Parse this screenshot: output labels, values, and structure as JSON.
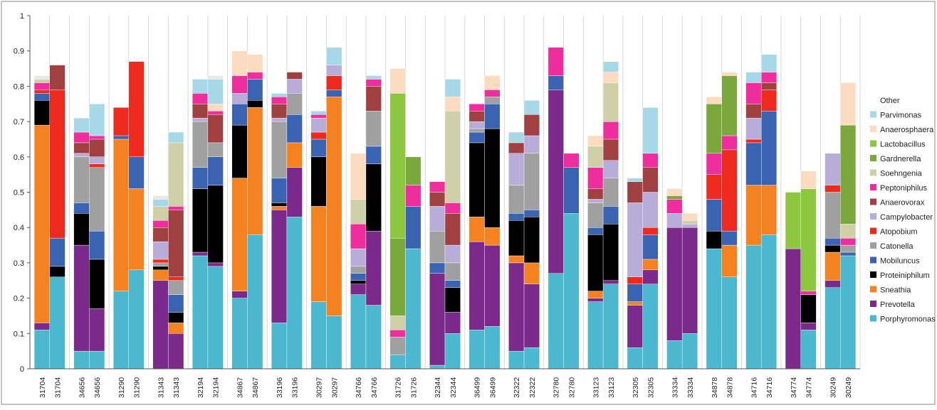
{
  "chart_data": {
    "type": "bar",
    "stacked": true,
    "title": "",
    "xlabel": "",
    "ylabel": "",
    "ylim": [
      0,
      1
    ],
    "yticks": [
      "0",
      "0.1",
      "0.2",
      "0.3",
      "0.4",
      "0.5",
      "0.6",
      "0.7",
      "0.8",
      "0.9",
      "1"
    ],
    "grid": false,
    "legend_position": "right",
    "categories": [
      "31704",
      "31704",
      "34656",
      "34656",
      "31290",
      "31290",
      "31343",
      "31343",
      "32194",
      "32194",
      "34867",
      "34867",
      "33196",
      "33196",
      "30297",
      "30297",
      "34766",
      "34766",
      "31726",
      "31726",
      "32344",
      "32344",
      "36499",
      "36499",
      "32322",
      "32322",
      "32780",
      "32780",
      "33123",
      "33123",
      "32305",
      "32305",
      "33334",
      "33334",
      "34878",
      "34878",
      "34716",
      "34716",
      "34774",
      "34774",
      "30249",
      "30249"
    ],
    "series": [
      {
        "name": "Porphyromonas",
        "color": "#4bb8d0",
        "values": [
          0.11,
          0.26,
          0.05,
          0.05,
          0.22,
          0.28,
          0,
          0,
          0.32,
          0.29,
          0.2,
          0.38,
          0.13,
          0.43,
          0.19,
          0.15,
          0.21,
          0.18,
          0.04,
          0.34,
          0.01,
          0.1,
          0.11,
          0.12,
          0.05,
          0.06,
          0.27,
          0.44,
          0.19,
          0.24,
          0.06,
          0.24,
          0.08,
          0.1,
          0.34,
          0.26,
          0.35,
          0.38,
          0,
          0.11,
          0.23,
          0.32
        ]
      },
      {
        "name": "Prevotella",
        "color": "#7b2a8c",
        "values": [
          0.02,
          0,
          0.3,
          0.12,
          0,
          0,
          0.25,
          0.1,
          0.01,
          0.01,
          0.02,
          0,
          0.32,
          0.14,
          0,
          0,
          0.03,
          0.21,
          0,
          0,
          0.26,
          0.06,
          0.25,
          0.23,
          0.25,
          0.18,
          0.52,
          0,
          0.01,
          0.01,
          0.12,
          0.04,
          0.32,
          0.3,
          0,
          0,
          0,
          0,
          0.34,
          0.02,
          0.02,
          0
        ]
      },
      {
        "name": "Sneathia",
        "color": "#f58220",
        "values": [
          0.56,
          0,
          0,
          0,
          0.43,
          0.23,
          0.03,
          0.03,
          0,
          0,
          0.32,
          0.36,
          0.01,
          0.07,
          0.27,
          0.62,
          0,
          0,
          0,
          0,
          0,
          0,
          0.07,
          0.05,
          0.02,
          0.06,
          0,
          0,
          0.02,
          0,
          0.01,
          0.03,
          0,
          0,
          0,
          0.09,
          0.17,
          0.14,
          0,
          0,
          0.08,
          0
        ]
      },
      {
        "name": "Proteiniphilum",
        "color": "#000000",
        "values": [
          0.07,
          0.03,
          0.09,
          0.14,
          0,
          0,
          0.01,
          0.03,
          0.18,
          0.22,
          0.15,
          0.02,
          0.01,
          0,
          0.14,
          0,
          0.01,
          0.19,
          0,
          0,
          0,
          0.07,
          0.21,
          0.28,
          0.1,
          0.13,
          0,
          0,
          0.16,
          0.16,
          0,
          0,
          0,
          0,
          0.05,
          0,
          0,
          0,
          0,
          0.08,
          0.02,
          0
        ]
      },
      {
        "name": "Mobiluncus",
        "color": "#3a64b2",
        "values": [
          0.02,
          0.08,
          0.03,
          0.08,
          0.01,
          0.09,
          0,
          0.05,
          0.06,
          0.08,
          0.06,
          0.06,
          0.07,
          0.08,
          0.05,
          0.02,
          0.02,
          0.05,
          0,
          0.12,
          0.03,
          0.02,
          0.03,
          0.07,
          0.02,
          0.02,
          0.04,
          0.13,
          0.02,
          0.05,
          0.05,
          0.07,
          0,
          0,
          0.09,
          0.04,
          0.12,
          0.21,
          0,
          0,
          0.02,
          0.01
        ]
      },
      {
        "name": "Catonella",
        "color": "#a0a0a0",
        "values": [
          0,
          0,
          0.13,
          0.18,
          0,
          0,
          0.01,
          0.04,
          0.13,
          0.04,
          0,
          0,
          0.16,
          0.06,
          0,
          0,
          0.02,
          0.1,
          0.05,
          0,
          0.09,
          0.05,
          0.01,
          0.02,
          0.08,
          0.16,
          0,
          0,
          0.07,
          0.08,
          0,
          0,
          0,
          0,
          0,
          0,
          0,
          0,
          0,
          0,
          0.13,
          0.02
        ]
      },
      {
        "name": "Atopobium",
        "color": "#ee2a1f",
        "values": [
          0.01,
          0.42,
          0,
          0.01,
          0.08,
          0.27,
          0.01,
          0.01,
          0,
          0,
          0,
          0,
          0,
          0,
          0.02,
          0.04,
          0,
          0,
          0,
          0,
          0,
          0,
          0,
          0,
          0,
          0,
          0,
          0,
          0,
          0,
          0.02,
          0.02,
          0,
          0,
          0.07,
          0.23,
          0.01,
          0.06,
          0,
          0,
          0.02,
          0
        ]
      },
      {
        "name": "Campylobacter",
        "color": "#b8acd8",
        "values": [
          0,
          0,
          0.01,
          0.02,
          0,
          0,
          0.05,
          0,
          0.01,
          0,
          0.03,
          0,
          0.01,
          0.04,
          0.04,
          0.03,
          0.05,
          0,
          0,
          0,
          0.07,
          0.05,
          0.02,
          0,
          0.09,
          0.05,
          0,
          0,
          0.01,
          0.05,
          0.21,
          0.1,
          0.04,
          0.01,
          0,
          0,
          0.06,
          0,
          0,
          0,
          0.09,
          0
        ]
      },
      {
        "name": "Anaerovorax",
        "color": "#a04040",
        "values": [
          0,
          0.07,
          0.03,
          0.05,
          0,
          0,
          0.04,
          0.19,
          0.04,
          0.08,
          0,
          0,
          0.04,
          0.02,
          0,
          0,
          0,
          0.07,
          0,
          0,
          0.04,
          0.09,
          0.03,
          0,
          0.03,
          0.06,
          0,
          0,
          0.03,
          0.06,
          0.06,
          0.07,
          0,
          0,
          0,
          0,
          0.04,
          0.02,
          0,
          0,
          0,
          0
        ]
      },
      {
        "name": "Peptoniphilus",
        "color": "#ef2e9e",
        "values": [
          0.02,
          0,
          0.03,
          0.01,
          0,
          0,
          0.02,
          0.01,
          0.03,
          0.01,
          0.05,
          0.02,
          0.02,
          0,
          0.01,
          0,
          0.07,
          0.02,
          0.02,
          0.06,
          0.03,
          0.03,
          0.02,
          0.02,
          0,
          0,
          0.08,
          0.04,
          0.06,
          0.05,
          0,
          0.04,
          0.04,
          0,
          0.06,
          0.04,
          0.06,
          0.03,
          0,
          0.01,
          0,
          0.02
        ]
      },
      {
        "name": "Soehngenia",
        "color": "#cfcfa8",
        "values": [
          0.01,
          0,
          0,
          0,
          0,
          0,
          0.04,
          0.18,
          0,
          0,
          0,
          0,
          0,
          0,
          0,
          0,
          0.07,
          0,
          0.04,
          0,
          0,
          0.26,
          0,
          0,
          0,
          0,
          0,
          0,
          0.06,
          0.11,
          0,
          0,
          0,
          0.01,
          0,
          0,
          0,
          0,
          0,
          0,
          0,
          0.04
        ]
      },
      {
        "name": "Gardnerella",
        "color": "#7aa83c",
        "values": [
          0,
          0,
          0,
          0,
          0,
          0,
          0,
          0,
          0,
          0,
          0,
          0,
          0,
          0,
          0,
          0,
          0,
          0,
          0.22,
          0.08,
          0,
          0,
          0,
          0,
          0,
          0,
          0,
          0,
          0,
          0,
          0,
          0,
          0.01,
          0,
          0.14,
          0.17,
          0,
          0,
          0,
          0,
          0,
          0.28
        ]
      },
      {
        "name": "Lactobacillus",
        "color": "#8dc63f",
        "values": [
          0,
          0,
          0,
          0,
          0,
          0,
          0,
          0,
          0,
          0,
          0,
          0,
          0,
          0,
          0,
          0,
          0,
          0,
          0.41,
          0,
          0,
          0,
          0,
          0,
          0,
          0,
          0,
          0,
          0,
          0,
          0,
          0,
          0,
          0,
          0,
          0,
          0,
          0,
          0.16,
          0.29,
          0,
          0
        ]
      },
      {
        "name": "Anaerosphaera",
        "color": "#fbdcc0",
        "values": [
          0,
          0,
          0,
          0,
          0,
          0,
          0,
          0,
          0,
          0.02,
          0.07,
          0.05,
          0,
          0,
          0,
          0,
          0.13,
          0,
          0.07,
          0,
          0,
          0.04,
          0,
          0.04,
          0,
          0,
          0,
          0,
          0.03,
          0.03,
          0,
          0,
          0.02,
          0.02,
          0.02,
          0.01,
          0,
          0,
          0,
          0.05,
          0,
          0.12
        ]
      },
      {
        "name": "Parvimonas",
        "color": "#a6d8e8",
        "values": [
          0,
          0,
          0.04,
          0.09,
          0,
          0,
          0.02,
          0.03,
          0.04,
          0.07,
          0,
          0,
          0.01,
          0,
          0.01,
          0.05,
          0,
          0.01,
          0,
          0,
          0,
          0.05,
          0,
          0,
          0.03,
          0.04,
          0,
          0,
          0,
          0.03,
          0.01,
          0.13,
          0,
          0,
          0,
          0,
          0.03,
          0.05,
          0,
          0,
          0,
          0
        ]
      },
      {
        "name": "Other",
        "color": "#e8e8e0",
        "values": [
          0.01,
          0,
          0,
          0,
          0,
          0,
          0.01,
          0,
          0,
          0.01,
          0,
          0,
          0,
          0,
          0,
          0,
          0,
          0,
          0,
          0,
          0,
          0,
          0,
          0,
          0,
          0,
          0,
          0,
          0,
          0,
          0,
          0,
          0,
          0,
          0,
          0,
          0,
          0,
          0,
          0,
          0,
          0
        ]
      }
    ]
  }
}
